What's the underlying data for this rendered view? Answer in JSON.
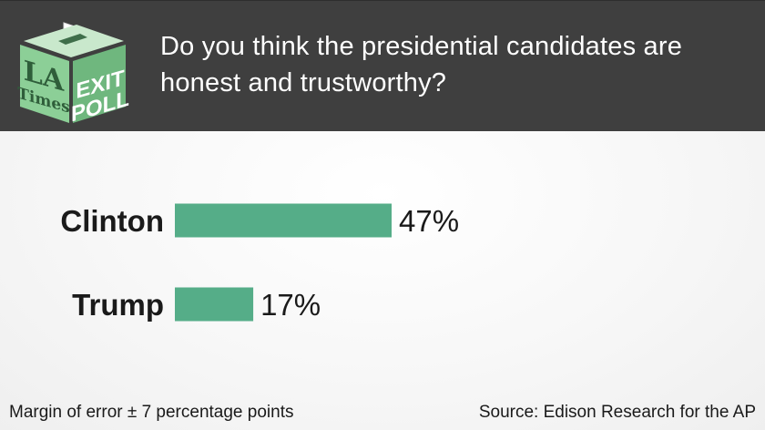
{
  "header": {
    "question": "Do you think the presidential candidates are honest and trustworthy?",
    "logo": {
      "left_text_top": "LA",
      "left_text_bottom": "Times",
      "right_text_top": "EXIT",
      "right_text_bottom": "POLL"
    }
  },
  "colors": {
    "header_bg": "#3f3f3f",
    "bar": "#55ad88",
    "logo_green": "#8ccf97",
    "logo_dark": "#6fb77e"
  },
  "chart_data": {
    "type": "bar",
    "orientation": "horizontal",
    "categories": [
      "Clinton",
      "Trump"
    ],
    "values": [
      47,
      17
    ],
    "value_labels": [
      "47%",
      "17%"
    ],
    "unit": "%",
    "title": "Do you think the presidential candidates are honest and trustworthy?",
    "xlabel": "",
    "ylabel": "",
    "xlim": [
      0,
      100
    ],
    "grid": false,
    "legend": "none"
  },
  "footer": {
    "margin_note": "Margin of error ± 7 percentage points",
    "source": "Source: Edison Research for the AP"
  }
}
